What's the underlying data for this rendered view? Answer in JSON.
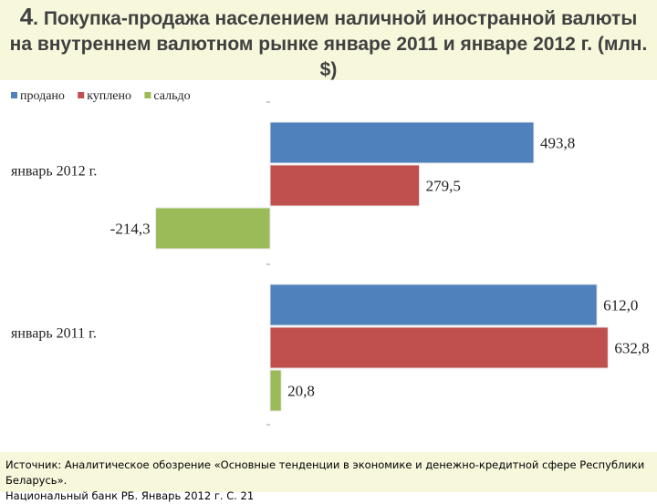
{
  "header": {
    "title_num": "4",
    "title_rest": ". Покупка-продажа населением наличной иностранной валюты на внутреннем валютном рынке январе 2011 и январе 2012 г. (млн. $)"
  },
  "chart_data": {
    "type": "bar",
    "orientation": "horizontal",
    "categories": [
      "январь 2012 г.",
      "январь 2011 г."
    ],
    "series": [
      {
        "name": "продано",
        "color": "#4f81bd",
        "values": [
          493.8,
          612.0
        ],
        "labels": [
          "493,8",
          "612,0"
        ]
      },
      {
        "name": "куплено",
        "color": "#c0504d",
        "values": [
          279.5,
          632.8
        ],
        "labels": [
          "279,5",
          "632,8"
        ]
      },
      {
        "name": "сальдо",
        "color": "#9bbb59",
        "values": [
          -214.3,
          20.8
        ],
        "labels": [
          "-214,3",
          "20,8"
        ]
      }
    ],
    "xlim": [
      -220,
      640
    ],
    "legend": "top-left",
    "grid": false
  },
  "footer": {
    "source_line1": "Источник: Аналитическое обозрение «Основные тенденции в экономике и денежно-кредитной сфере Республики Беларусь».",
    "source_line2": "Национальный банк РБ. Январь 2012 г. С. 21"
  }
}
